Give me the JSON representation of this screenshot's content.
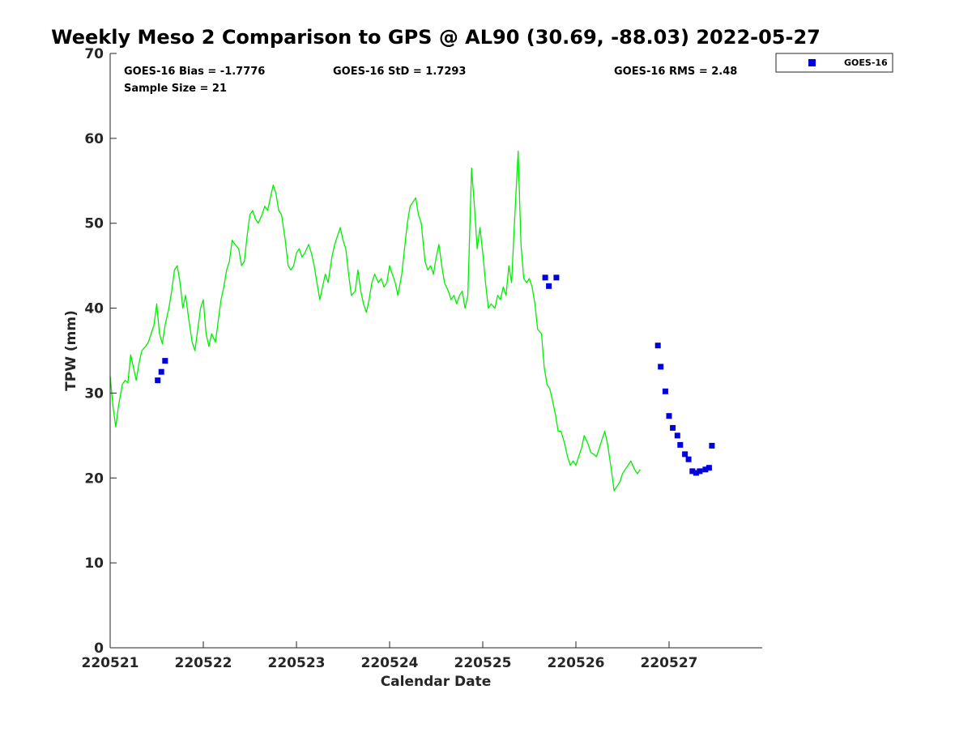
{
  "chart_data": {
    "type": "line",
    "title": "Weekly Meso 2 Comparison to GPS @ AL90 (30.69, -88.03) 2022-05-27",
    "xlabel": "Calendar Date",
    "ylabel": "TPW (mm)",
    "xlim": [
      220521,
      220528
    ],
    "ylim": [
      0,
      70
    ],
    "yticks": [
      0,
      10,
      20,
      30,
      40,
      50,
      60,
      70
    ],
    "xticks": [
      {
        "value": 220521,
        "label": "220521"
      },
      {
        "value": 220522,
        "label": "220522"
      },
      {
        "value": 220523,
        "label": "220523"
      },
      {
        "value": 220524,
        "label": "220524"
      },
      {
        "value": 220525,
        "label": "220525"
      },
      {
        "value": 220526,
        "label": "220526"
      },
      {
        "value": 220527,
        "label": "220527"
      }
    ],
    "grid": false,
    "legend_position": "top-right outside",
    "stats": {
      "bias": "GOES-16 Bias = -1.7776",
      "std": "GOES-16 StD = 1.7293",
      "rms": "GOES-16 RMS = 2.48",
      "sample": "Sample Size = 21"
    },
    "colors": {
      "gps": "#00ee00",
      "goes": "#0000dd",
      "axis": "#262626"
    },
    "series": [
      {
        "type": "line",
        "values": [
          [
            0.0,
            32.0
          ],
          [
            0.03,
            28.5
          ],
          [
            0.06,
            26.0
          ],
          [
            0.09,
            28.5
          ],
          [
            0.13,
            31.0
          ],
          [
            0.16,
            31.5
          ],
          [
            0.19,
            31.2
          ],
          [
            0.22,
            34.5
          ],
          [
            0.25,
            33.0
          ],
          [
            0.28,
            31.5
          ],
          [
            0.31,
            33.5
          ],
          [
            0.34,
            35.0
          ],
          [
            0.38,
            35.5
          ],
          [
            0.41,
            36.0
          ],
          [
            0.44,
            37.0
          ],
          [
            0.47,
            38.0
          ],
          [
            0.5,
            40.5
          ],
          [
            0.53,
            37.0
          ],
          [
            0.56,
            35.8
          ],
          [
            0.59,
            38.0
          ],
          [
            0.63,
            40.0
          ],
          [
            0.66,
            42.0
          ],
          [
            0.69,
            44.5
          ],
          [
            0.72,
            45.0
          ],
          [
            0.75,
            43.0
          ],
          [
            0.78,
            40.0
          ],
          [
            0.81,
            41.5
          ],
          [
            0.84,
            39.0
          ],
          [
            0.88,
            36.0
          ],
          [
            0.91,
            35.0
          ],
          [
            0.94,
            37.5
          ],
          [
            0.97,
            40.0
          ],
          [
            1.0,
            41.0
          ],
          [
            1.03,
            37.0
          ],
          [
            1.06,
            35.5
          ],
          [
            1.09,
            37.0
          ],
          [
            1.13,
            36.0
          ],
          [
            1.16,
            38.5
          ],
          [
            1.19,
            41.0
          ],
          [
            1.22,
            42.5
          ],
          [
            1.25,
            44.5
          ],
          [
            1.28,
            45.5
          ],
          [
            1.31,
            48.0
          ],
          [
            1.34,
            47.5
          ],
          [
            1.38,
            47.0
          ],
          [
            1.41,
            45.0
          ],
          [
            1.44,
            45.5
          ],
          [
            1.47,
            48.5
          ],
          [
            1.5,
            51.0
          ],
          [
            1.53,
            51.5
          ],
          [
            1.56,
            50.5
          ],
          [
            1.59,
            50.0
          ],
          [
            1.63,
            51.0
          ],
          [
            1.66,
            52.0
          ],
          [
            1.69,
            51.5
          ],
          [
            1.72,
            53.0
          ],
          [
            1.75,
            54.5
          ],
          [
            1.78,
            53.5
          ],
          [
            1.81,
            51.5
          ],
          [
            1.84,
            51.0
          ],
          [
            1.88,
            48.0
          ],
          [
            1.91,
            45.0
          ],
          [
            1.94,
            44.5
          ],
          [
            1.97,
            45.0
          ],
          [
            2.0,
            46.5
          ],
          [
            2.03,
            47.0
          ],
          [
            2.06,
            46.0
          ],
          [
            2.09,
            46.5
          ],
          [
            2.13,
            47.5
          ],
          [
            2.16,
            46.5
          ],
          [
            2.19,
            45.0
          ],
          [
            2.22,
            43.0
          ],
          [
            2.25,
            41.0
          ],
          [
            2.28,
            42.5
          ],
          [
            2.31,
            44.0
          ],
          [
            2.34,
            43.0
          ],
          [
            2.38,
            46.0
          ],
          [
            2.41,
            47.5
          ],
          [
            2.44,
            48.5
          ],
          [
            2.47,
            49.5
          ],
          [
            2.5,
            48.0
          ],
          [
            2.53,
            47.0
          ],
          [
            2.56,
            44.0
          ],
          [
            2.59,
            41.5
          ],
          [
            2.63,
            42.0
          ],
          [
            2.66,
            44.5
          ],
          [
            2.69,
            42.0
          ],
          [
            2.72,
            40.5
          ],
          [
            2.75,
            39.5
          ],
          [
            2.78,
            41.0
          ],
          [
            2.81,
            43.0
          ],
          [
            2.84,
            44.0
          ],
          [
            2.88,
            43.0
          ],
          [
            2.91,
            43.5
          ],
          [
            2.94,
            42.5
          ],
          [
            2.97,
            43.0
          ],
          [
            3.0,
            45.0
          ],
          [
            3.03,
            44.0
          ],
          [
            3.06,
            43.0
          ],
          [
            3.09,
            41.5
          ],
          [
            3.13,
            44.0
          ],
          [
            3.16,
            47.0
          ],
          [
            3.19,
            50.0
          ],
          [
            3.22,
            52.0
          ],
          [
            3.25,
            52.5
          ],
          [
            3.28,
            53.0
          ],
          [
            3.31,
            51.0
          ],
          [
            3.34,
            50.0
          ],
          [
            3.38,
            45.5
          ],
          [
            3.41,
            44.5
          ],
          [
            3.44,
            45.0
          ],
          [
            3.47,
            44.0
          ],
          [
            3.5,
            46.0
          ],
          [
            3.53,
            47.5
          ],
          [
            3.56,
            45.0
          ],
          [
            3.59,
            43.0
          ],
          [
            3.63,
            42.0
          ],
          [
            3.66,
            41.0
          ],
          [
            3.69,
            41.5
          ],
          [
            3.72,
            40.5
          ],
          [
            3.75,
            41.5
          ],
          [
            3.78,
            42.0
          ],
          [
            3.81,
            40.0
          ],
          [
            3.84,
            41.5
          ],
          [
            3.88,
            56.5
          ],
          [
            3.91,
            52.0
          ],
          [
            3.94,
            47.0
          ],
          [
            3.97,
            49.5
          ],
          [
            4.0,
            46.5
          ],
          [
            4.03,
            43.0
          ],
          [
            4.06,
            40.0
          ],
          [
            4.09,
            40.5
          ],
          [
            4.13,
            40.0
          ],
          [
            4.16,
            41.5
          ],
          [
            4.19,
            41.0
          ],
          [
            4.22,
            42.5
          ],
          [
            4.25,
            41.5
          ],
          [
            4.28,
            45.0
          ],
          [
            4.31,
            43.0
          ],
          [
            4.34,
            50.0
          ],
          [
            4.38,
            58.5
          ],
          [
            4.41,
            47.5
          ],
          [
            4.44,
            43.5
          ],
          [
            4.47,
            43.0
          ],
          [
            4.5,
            43.5
          ],
          [
            4.53,
            42.5
          ],
          [
            4.56,
            40.5
          ],
          [
            4.59,
            37.5
          ],
          [
            4.63,
            37.0
          ],
          [
            4.66,
            33.0
          ],
          [
            4.69,
            31.0
          ],
          [
            4.72,
            30.5
          ],
          [
            4.75,
            29.0
          ],
          [
            4.78,
            27.5
          ],
          [
            4.81,
            25.5
          ],
          [
            4.84,
            25.5
          ],
          [
            4.88,
            24.0
          ],
          [
            4.91,
            22.5
          ],
          [
            4.94,
            21.5
          ],
          [
            4.97,
            22.0
          ],
          [
            5.0,
            21.5
          ],
          [
            5.03,
            22.5
          ],
          [
            5.06,
            23.5
          ],
          [
            5.09,
            25.0
          ],
          [
            5.13,
            24.0
          ],
          [
            5.16,
            23.0
          ],
          [
            5.19,
            22.8
          ],
          [
            5.22,
            22.5
          ],
          [
            5.25,
            23.5
          ],
          [
            5.28,
            24.5
          ],
          [
            5.31,
            25.5
          ],
          [
            5.34,
            24.0
          ],
          [
            5.38,
            21.0
          ],
          [
            5.41,
            18.5
          ],
          [
            5.44,
            19.0
          ],
          [
            5.47,
            19.5
          ],
          [
            5.5,
            20.5
          ],
          [
            5.53,
            21.0
          ],
          [
            5.56,
            21.5
          ],
          [
            5.59,
            22.0
          ],
          [
            5.63,
            21.0
          ],
          [
            5.66,
            20.5
          ],
          [
            5.69,
            21.0
          ]
        ]
      },
      {
        "name": "GOES-16",
        "type": "scatter",
        "values": [
          [
            0.51,
            31.5
          ],
          [
            0.55,
            32.5
          ],
          [
            0.59,
            33.8
          ],
          [
            4.67,
            43.6
          ],
          [
            4.71,
            42.6
          ],
          [
            4.79,
            43.6
          ],
          [
            5.88,
            35.6
          ],
          [
            5.91,
            33.1
          ],
          [
            5.96,
            30.2
          ],
          [
            6.0,
            27.3
          ],
          [
            6.04,
            25.9
          ],
          [
            6.09,
            25.0
          ],
          [
            6.12,
            23.9
          ],
          [
            6.17,
            22.8
          ],
          [
            6.21,
            22.2
          ],
          [
            6.25,
            20.8
          ],
          [
            6.29,
            20.6
          ],
          [
            6.33,
            20.8
          ],
          [
            6.39,
            21.0
          ],
          [
            6.43,
            21.2
          ],
          [
            6.46,
            23.8
          ]
        ]
      }
    ]
  }
}
